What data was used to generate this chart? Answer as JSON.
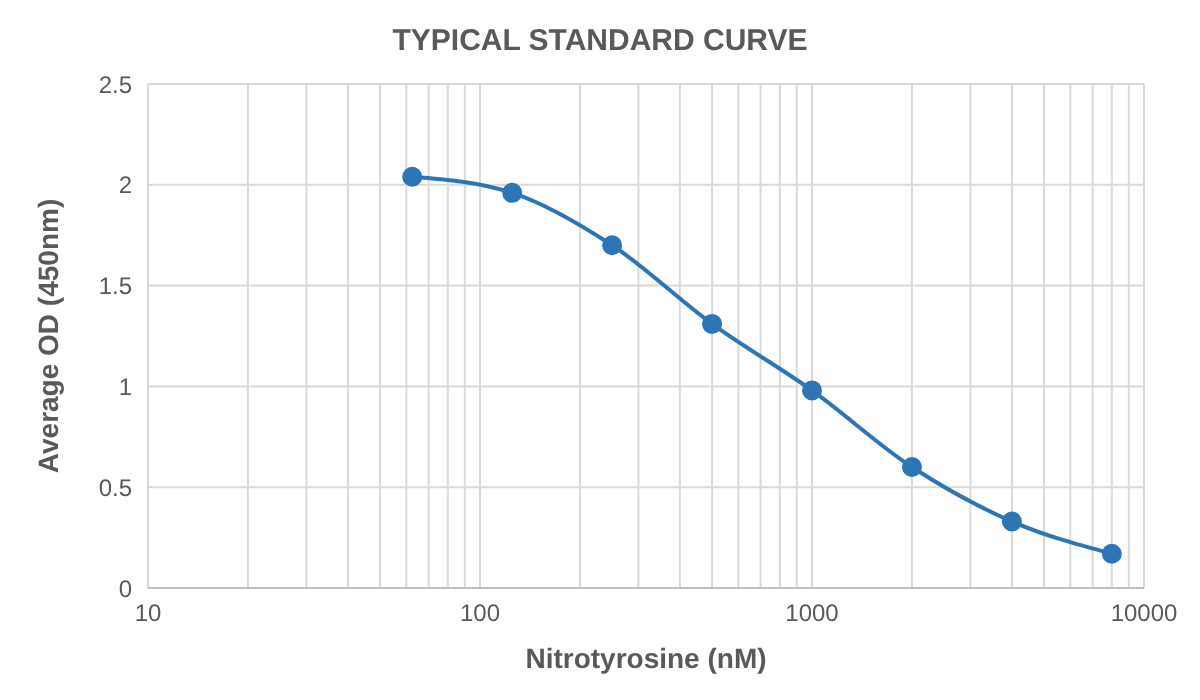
{
  "chart_data": {
    "type": "line",
    "title": "TYPICAL STANDARD CURVE",
    "xlabel": "Nitrotyrosine (nM)",
    "ylabel": "Average OD (450nm)",
    "x": [
      62.5,
      125,
      250,
      500,
      1000,
      2000,
      4000,
      8000
    ],
    "series": [
      {
        "color": "#2e75b6",
        "values": [
          2.04,
          1.96,
          1.7,
          1.31,
          0.98,
          0.6,
          0.33,
          0.17
        ]
      }
    ],
    "log": "x",
    "xlim": [
      10,
      10000
    ],
    "xticks": [
      10,
      {
        "value": 20,
        "label": null
      },
      {
        "value": 30,
        "label": null
      },
      {
        "value": 40,
        "label": null
      },
      {
        "value": 50,
        "label": null
      },
      {
        "value": 60,
        "label": null
      },
      {
        "value": 70,
        "label": null
      },
      {
        "value": 80,
        "label": null
      },
      {
        "value": 90,
        "label": null
      },
      100,
      {
        "value": 200,
        "label": null
      },
      {
        "value": 300,
        "label": null
      },
      {
        "value": 400,
        "label": null
      },
      {
        "value": 500,
        "label": null
      },
      {
        "value": 600,
        "label": null
      },
      {
        "value": 700,
        "label": null
      },
      {
        "value": 800,
        "label": null
      },
      {
        "value": 900,
        "label": null
      },
      1000,
      {
        "value": 2000,
        "label": null
      },
      {
        "value": 3000,
        "label": null
      },
      {
        "value": 4000,
        "label": null
      },
      {
        "value": 5000,
        "label": null
      },
      {
        "value": 6000,
        "label": null
      },
      {
        "value": 7000,
        "label": null
      },
      {
        "value": 8000,
        "label": null
      },
      {
        "value": 9000,
        "label": null
      },
      10000
    ],
    "ylim": [
      0,
      2.5
    ],
    "yticks": [
      0,
      0.5,
      1,
      1.5,
      2,
      2.5
    ],
    "grid": true,
    "marker": "circle",
    "line_style": "solid"
  }
}
